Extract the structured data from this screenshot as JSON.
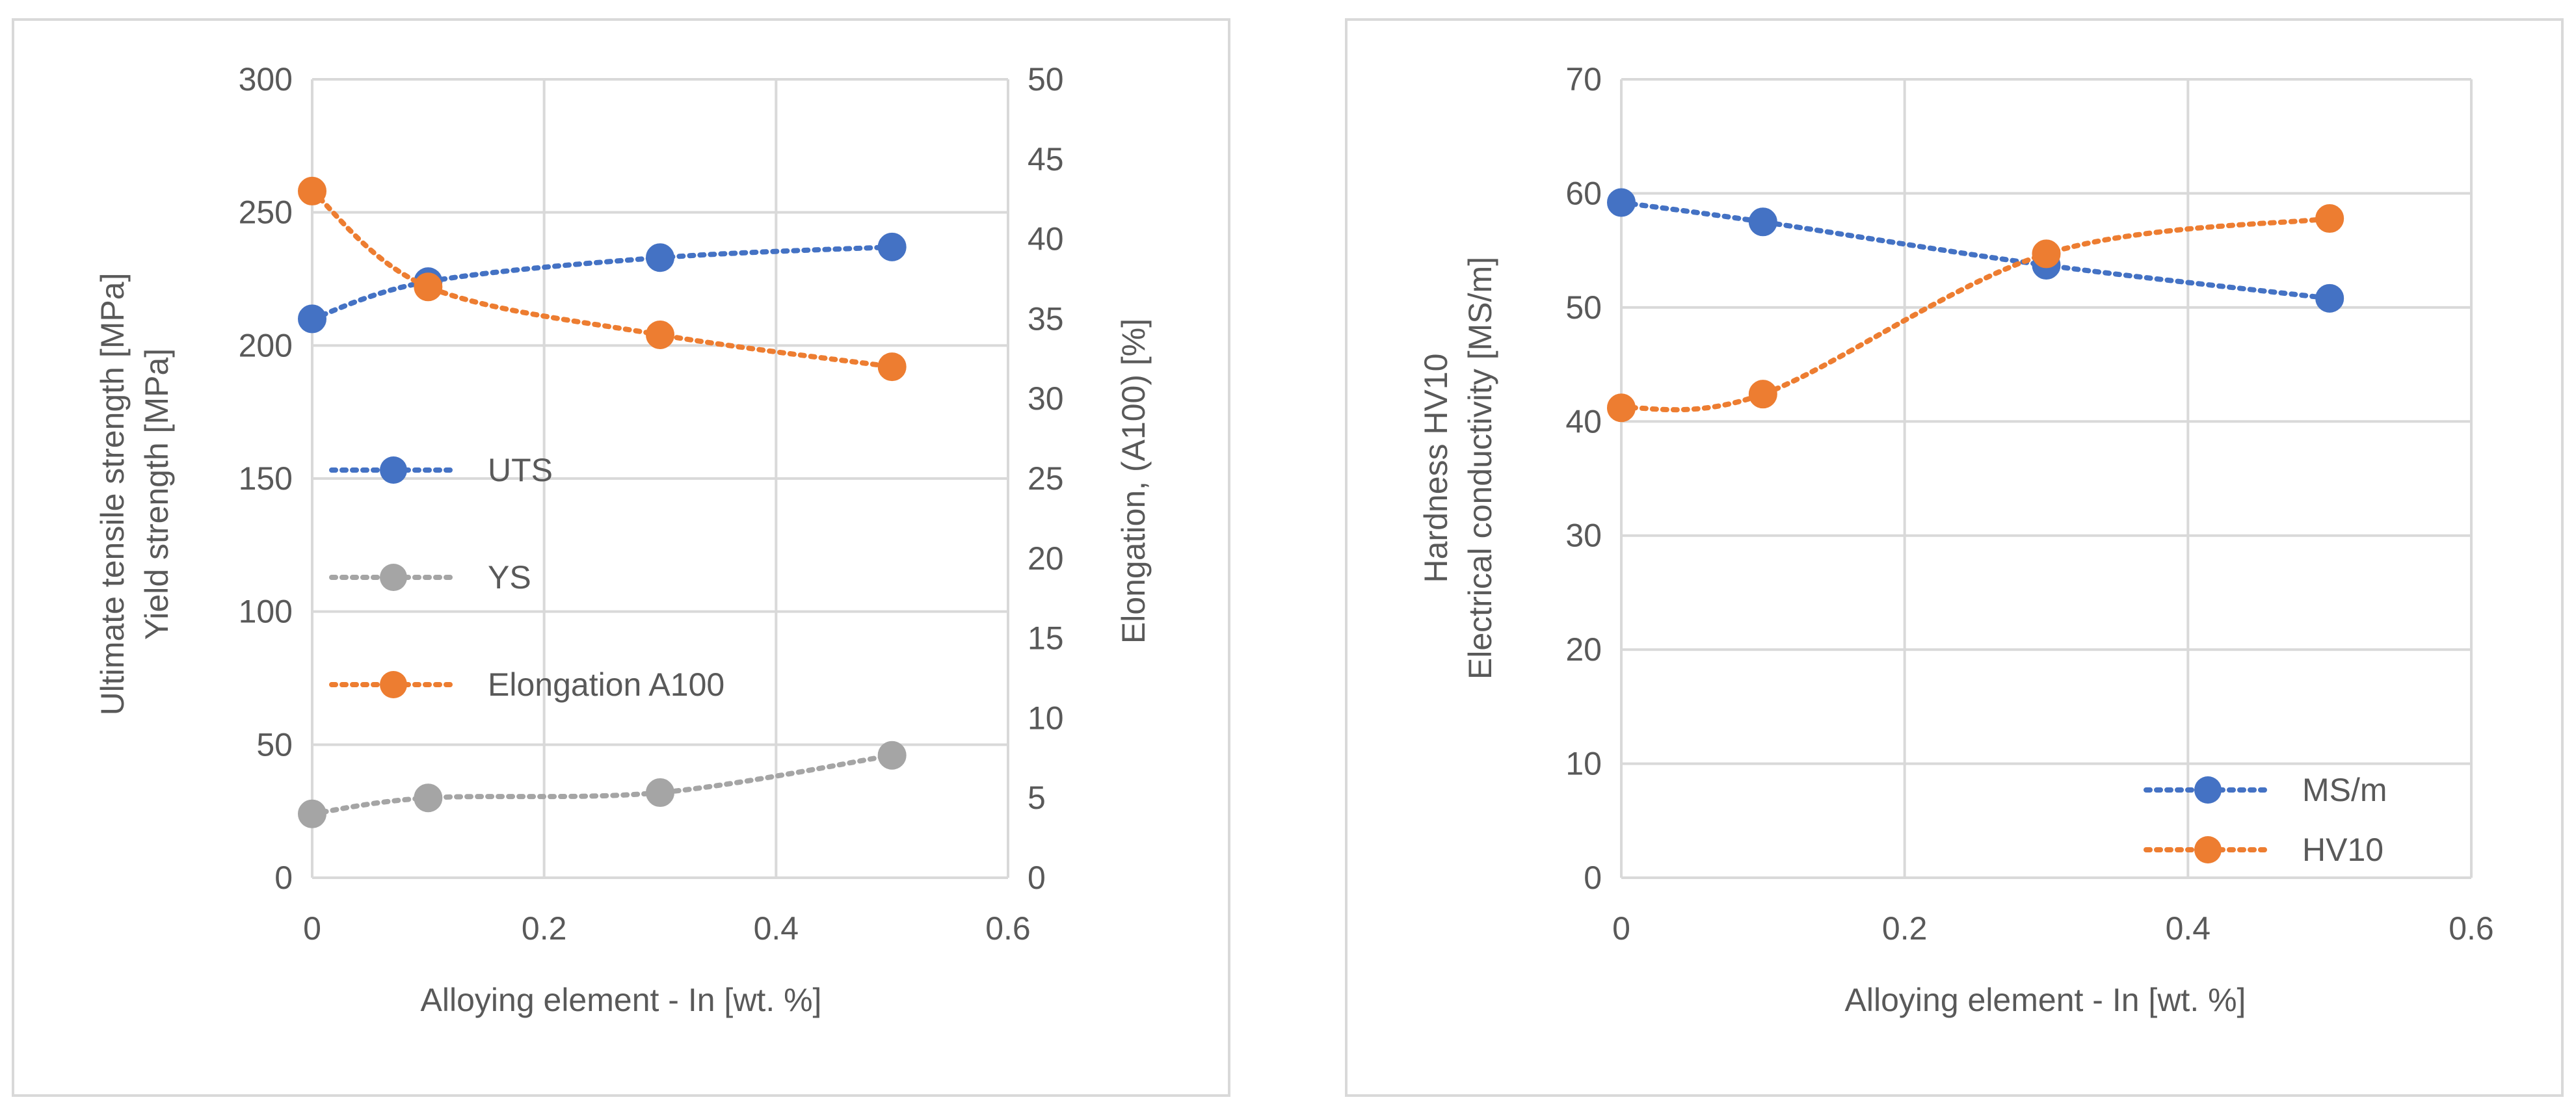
{
  "colors": {
    "blue": "#4472c4",
    "orange": "#ed7d31",
    "gray": "#a5a5a5"
  },
  "chart_data": [
    {
      "type": "line",
      "x_label": "Alloying element - In [wt. %]",
      "y_left_label_1": "Ultimate tensile strength [MPa]",
      "y_left_label_2": "Yield strength [MPa]",
      "y_right_label": "Elongation, (A100) [%]",
      "xlim": [
        0,
        0.6
      ],
      "ylim_left": [
        0,
        300
      ],
      "ylim_right": [
        0,
        50
      ],
      "x_ticks": [
        "0",
        "0.2",
        "0.4",
        "0.6"
      ],
      "y_left_ticks": [
        "0",
        "50",
        "100",
        "150",
        "200",
        "250",
        "300"
      ],
      "y_right_ticks": [
        "0",
        "5",
        "10",
        "15",
        "20",
        "25",
        "30",
        "35",
        "40",
        "45",
        "50"
      ],
      "grid": true,
      "legend_position": "left-middle",
      "series": [
        {
          "name": "UTS",
          "axis": "left",
          "color": "#4472c4",
          "x": [
            0,
            0.1,
            0.3,
            0.5
          ],
          "y": [
            210,
            224,
            233,
            237
          ]
        },
        {
          "name": "YS",
          "axis": "left",
          "color": "#a5a5a5",
          "x": [
            0,
            0.1,
            0.3,
            0.5
          ],
          "y": [
            24,
            30,
            32,
            46
          ]
        },
        {
          "name": "Elongation A100",
          "axis": "right",
          "color": "#ed7d31",
          "x": [
            0,
            0.1,
            0.3,
            0.5
          ],
          "y": [
            43,
            37,
            34,
            32
          ]
        }
      ]
    },
    {
      "type": "line",
      "x_label": "Alloying element - In [wt. %]",
      "y_left_label_1": "Hardness HV10",
      "y_left_label_2": "Electrical conductivity [MS/m]",
      "xlim": [
        0,
        0.6
      ],
      "ylim_left": [
        0,
        70
      ],
      "x_ticks": [
        "0",
        "0.2",
        "0.4",
        "0.6"
      ],
      "y_left_ticks": [
        "0",
        "10",
        "20",
        "30",
        "40",
        "50",
        "60",
        "70"
      ],
      "grid": true,
      "legend_position": "bottom-right",
      "series": [
        {
          "name": "MS/m",
          "axis": "left",
          "color": "#4472c4",
          "x": [
            0,
            0.1,
            0.3,
            0.5
          ],
          "y": [
            59.2,
            57.5,
            53.7,
            50.8
          ]
        },
        {
          "name": "HV10",
          "axis": "left",
          "color": "#ed7d31",
          "x": [
            0,
            0.1,
            0.3,
            0.5
          ],
          "y": [
            41.2,
            42.4,
            54.7,
            57.8
          ]
        }
      ]
    }
  ]
}
